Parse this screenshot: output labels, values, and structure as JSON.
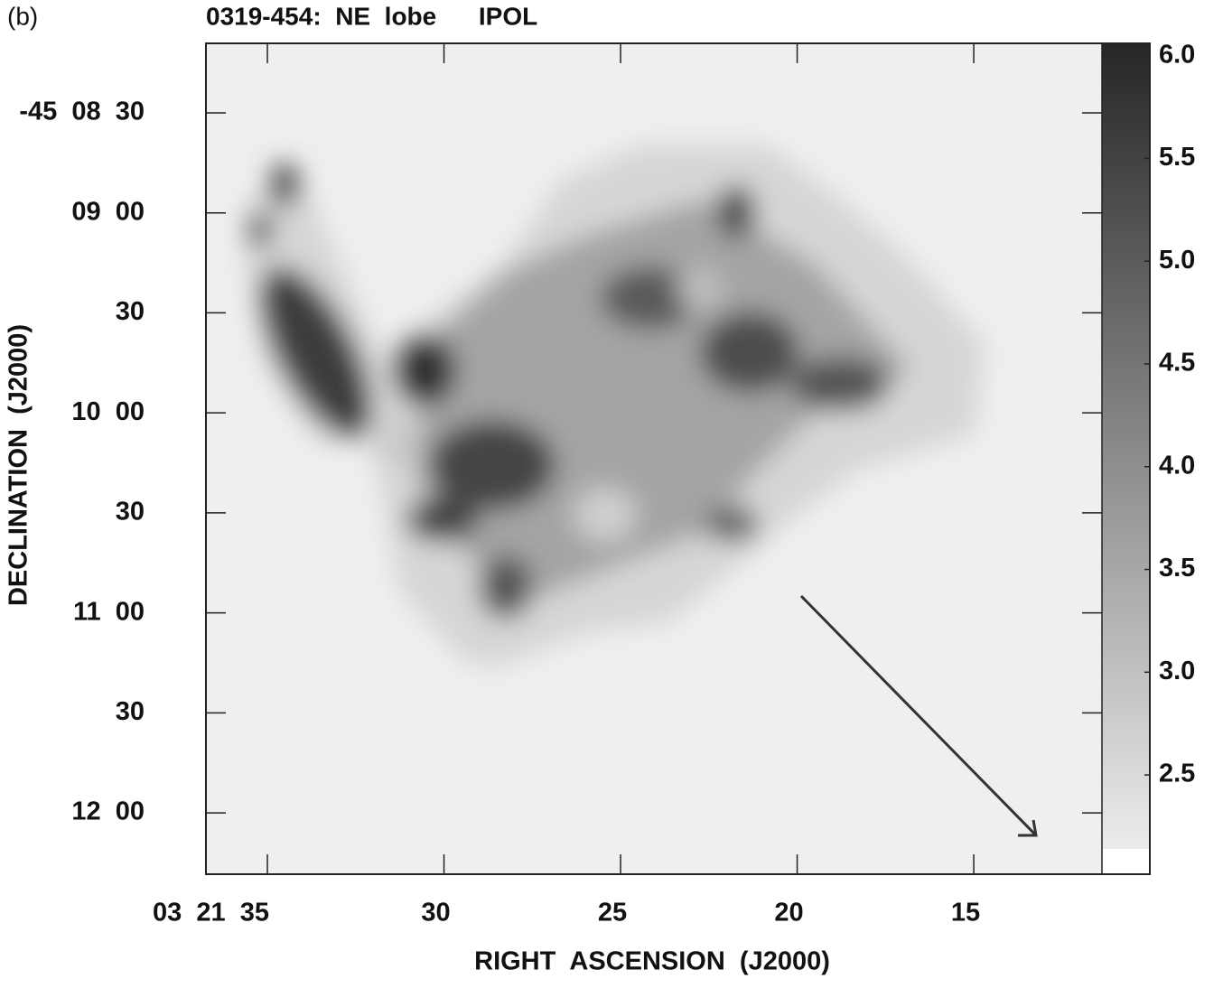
{
  "panel_label": "(b)",
  "chart_data": {
    "type": "image",
    "title": "0319-454:  NE  lobe      IPOL",
    "xlabel": "RIGHT  ASCENSION  (J2000)",
    "ylabel": "DECLINATION  (J2000)",
    "xlim": [
      36.74,
      11.37
    ],
    "xticks": [
      {
        "value": 35,
        "label": "03  21  35"
      },
      30,
      25,
      20,
      15
    ],
    "ylim": [
      258.4,
      9.15
    ],
    "yticks": [
      {
        "value": 30,
        "label": "-45  08  30"
      },
      {
        "value": 60,
        "label": "09  00"
      },
      {
        "value": 90,
        "label": "30"
      },
      {
        "value": 120,
        "label": "10  00"
      },
      {
        "value": 150,
        "label": "30"
      },
      {
        "value": 180,
        "label": "11  00"
      },
      {
        "value": 210,
        "label": "30"
      },
      {
        "value": 240,
        "label": "12  00"
      }
    ],
    "colorbar": {
      "clim": [
        2.14,
        6.06
      ],
      "ticks": [
        2.5,
        3.0,
        3.5,
        4.0,
        4.5,
        5.0,
        5.5,
        6.0
      ],
      "colormap": [
        "#ececec",
        "#262626"
      ]
    }
  }
}
